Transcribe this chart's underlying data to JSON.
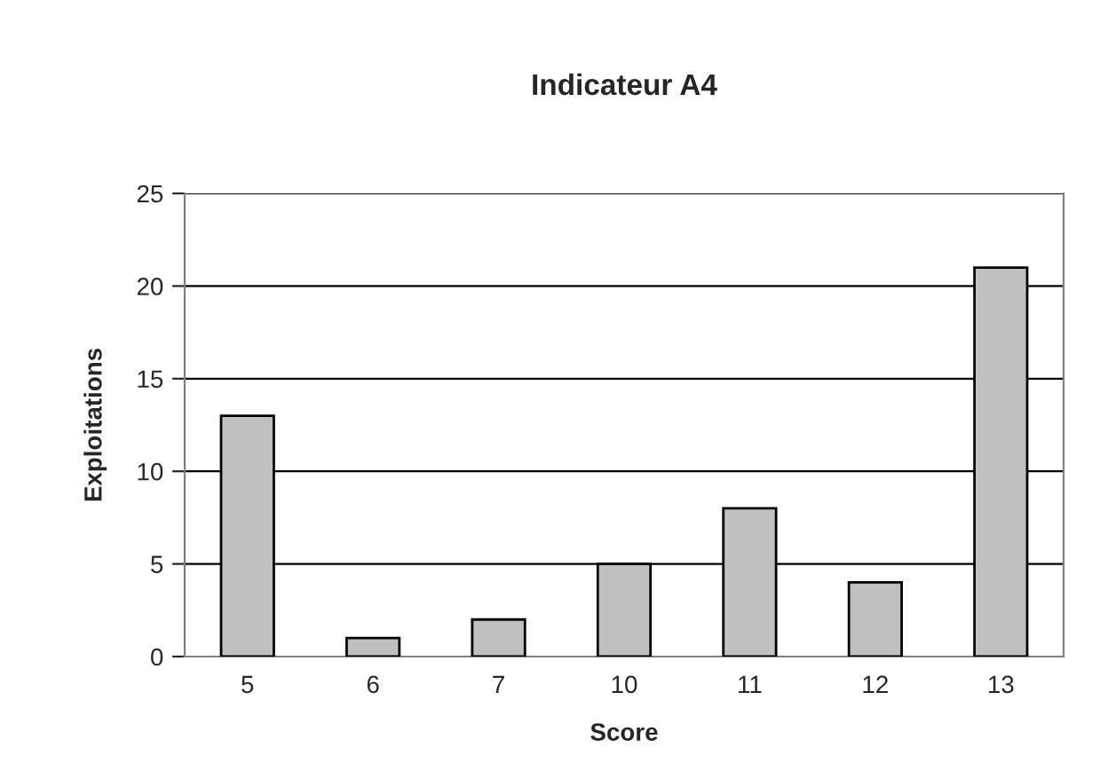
{
  "chart_data": {
    "type": "bar",
    "title": "Indicateur A4",
    "xlabel": "Score",
    "ylabel": "Exploitations",
    "categories": [
      "5",
      "6",
      "7",
      "10",
      "11",
      "12",
      "13"
    ],
    "values": [
      13,
      1,
      2,
      5,
      8,
      4,
      21
    ],
    "color": "#c0c0c0",
    "ylim": [
      0,
      25
    ],
    "yticks": [
      0,
      5,
      10,
      15,
      20,
      25
    ],
    "grid": "y",
    "legend": false
  }
}
